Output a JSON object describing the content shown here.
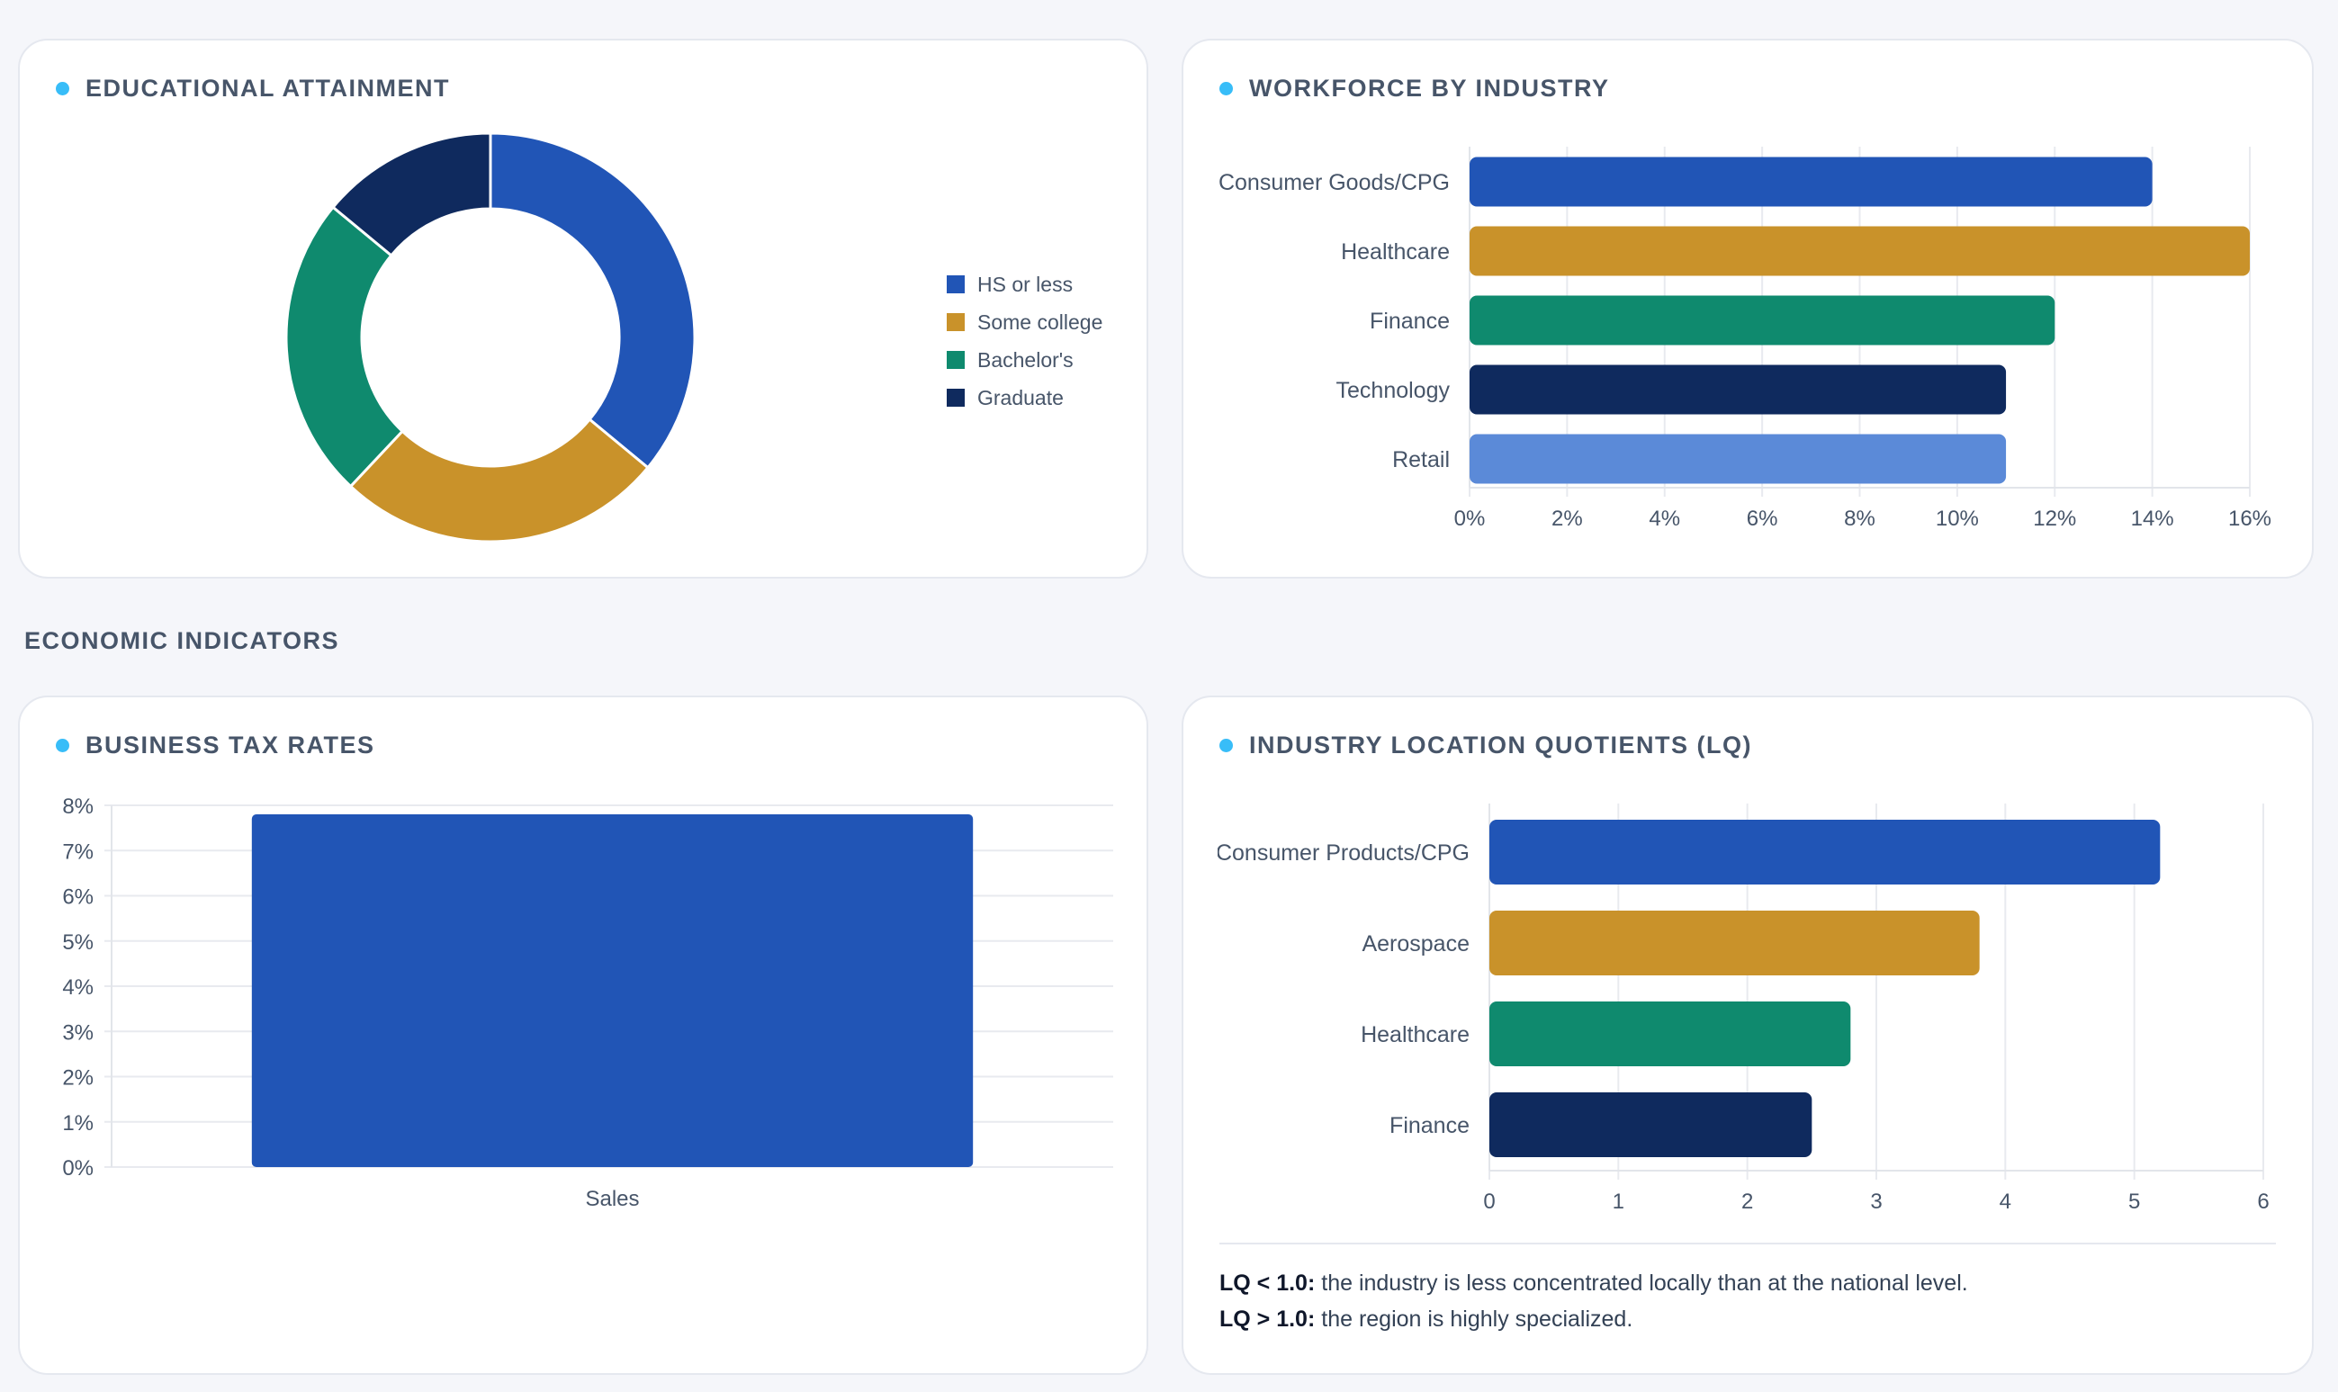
{
  "sections": {
    "economic_title": "ECONOMIC INDICATORS"
  },
  "cards": {
    "education": {
      "title": "EDUCATIONAL ATTAINMENT"
    },
    "workforce": {
      "title": "WORKFORCE BY INDUSTRY"
    },
    "tax": {
      "title": "BUSINESS TAX RATES"
    },
    "lq": {
      "title": "INDUSTRY LOCATION QUOTIENTS (LQ)",
      "note1_label": "LQ < 1.0:",
      "note1_text": " the industry is less concentrated locally than at the national level.",
      "note2_label": "LQ > 1.0:",
      "note2_text": " the region is highly specialized."
    }
  },
  "chart_data": [
    {
      "id": "education",
      "type": "pie",
      "categories": [
        "HS or less",
        "Some college",
        "Bachelor's",
        "Graduate"
      ],
      "values": [
        36,
        26,
        24,
        14
      ],
      "colors": [
        "#2155b6",
        "#c9922a",
        "#0f8a6e",
        "#0f2a5e"
      ],
      "legend": "right",
      "donut": true
    },
    {
      "id": "workforce",
      "type": "bar",
      "orientation": "horizontal",
      "categories": [
        "Consumer Goods/CPG",
        "Healthcare",
        "Finance",
        "Technology",
        "Retail"
      ],
      "values": [
        14,
        16,
        12,
        11,
        11
      ],
      "colors": [
        "#2155b6",
        "#c9922a",
        "#0f8a6e",
        "#0f2a5e",
        "#5b8ad8"
      ],
      "xlim": [
        0,
        16
      ],
      "xticks": [
        "0%",
        "2%",
        "4%",
        "6%",
        "8%",
        "10%",
        "12%",
        "14%",
        "16%"
      ],
      "grid": true
    },
    {
      "id": "tax",
      "type": "bar",
      "orientation": "vertical",
      "categories": [
        "Sales"
      ],
      "values": [
        7.8
      ],
      "colors": [
        "#2155b6"
      ],
      "ylim": [
        0,
        8
      ],
      "yticks": [
        "0%",
        "1%",
        "2%",
        "3%",
        "4%",
        "5%",
        "6%",
        "7%",
        "8%"
      ],
      "grid": true
    },
    {
      "id": "lq",
      "type": "bar",
      "orientation": "horizontal",
      "categories": [
        "Consumer Products/CPG",
        "Aerospace",
        "Healthcare",
        "Finance"
      ],
      "values": [
        5.2,
        3.8,
        2.8,
        2.5
      ],
      "colors": [
        "#2155b6",
        "#c9922a",
        "#0f8a6e",
        "#0f2a5e"
      ],
      "xlim": [
        0,
        6
      ],
      "xticks": [
        "0",
        "1",
        "2",
        "3",
        "4",
        "5",
        "6"
      ],
      "grid": true
    }
  ]
}
